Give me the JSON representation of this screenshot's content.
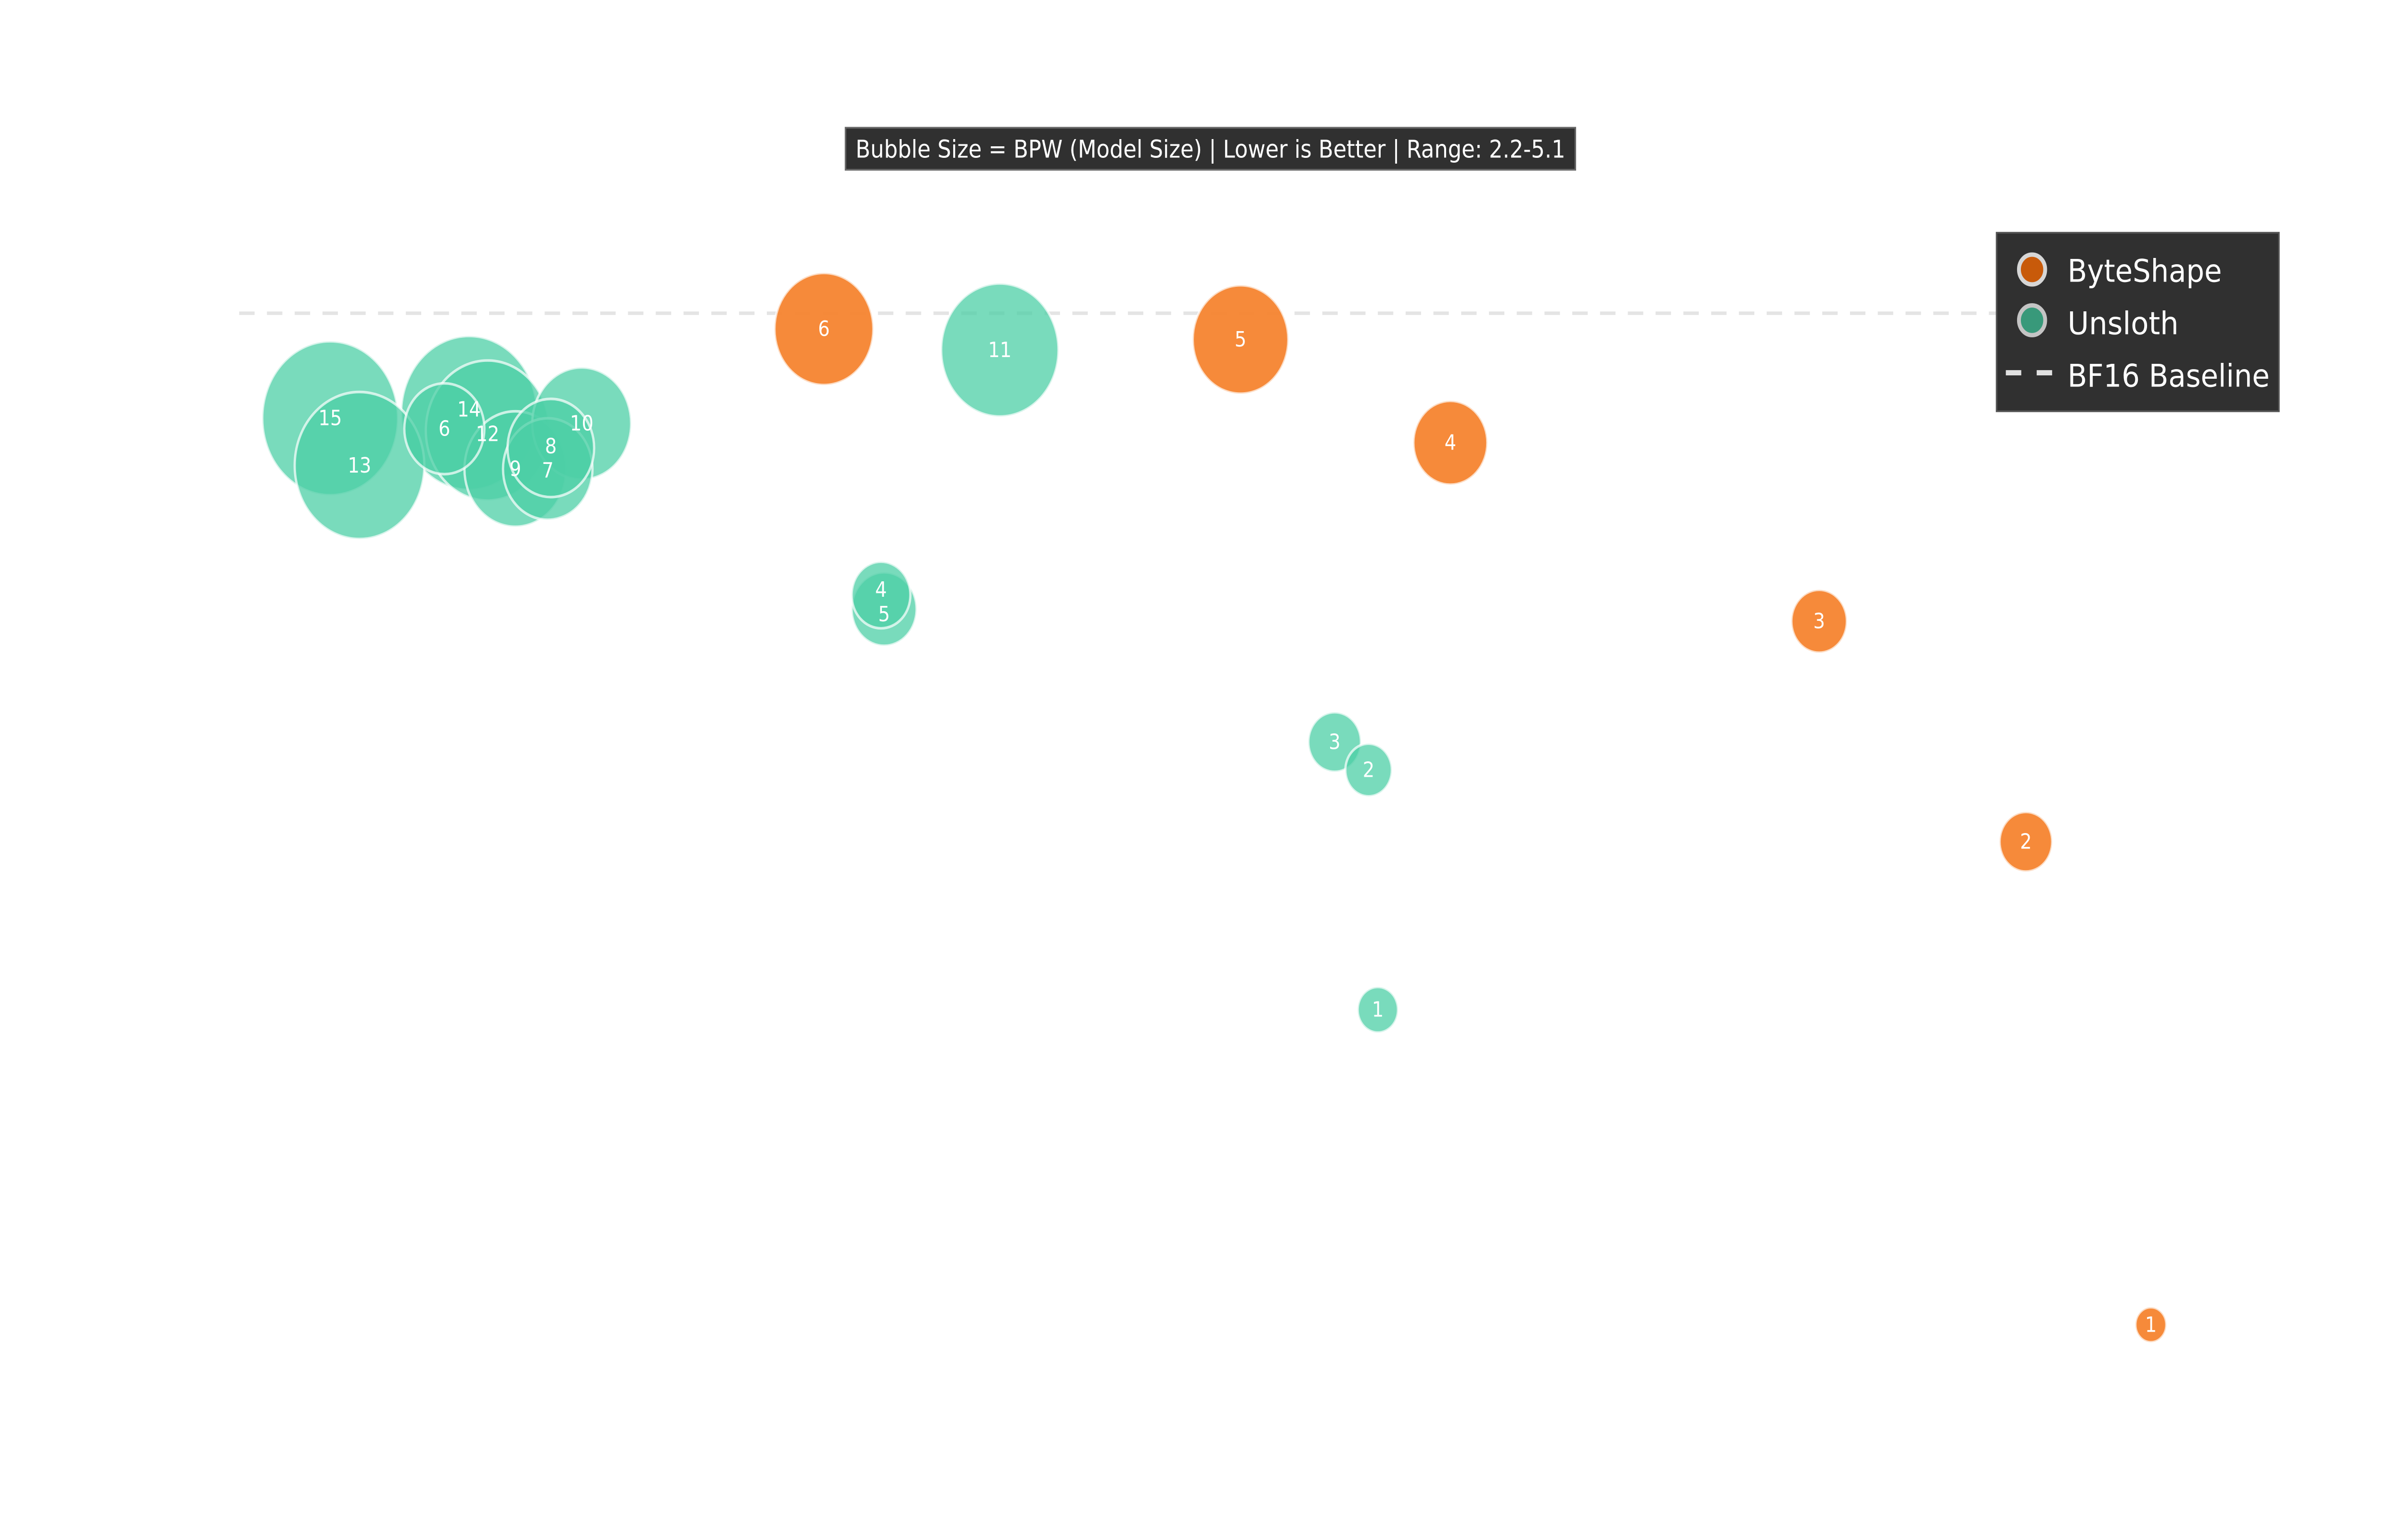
{
  "chart_data": {
    "type": "scatter",
    "subtitle": "Bubble Size = BPW (Model Size) | Lower is Better | Range: 2.2-5.1",
    "xlabel": "",
    "ylabel": "",
    "xlim": [
      0,
      15.6
    ],
    "ylim": [
      -1.5,
      7.0
    ],
    "y_inverted": true,
    "axes_visible": false,
    "grid": false,
    "bubble_size_range": [
      2.2,
      5.1
    ],
    "baseline": {
      "name": "BF16 Baseline",
      "y": 0,
      "style": "dashed",
      "color": "#e0e0e0"
    },
    "legend": {
      "placement": "top-right",
      "items": [
        {
          "label": "ByteShape",
          "marker": "circle",
          "color": "#c85a0a"
        },
        {
          "label": "Unsloth",
          "marker": "circle",
          "color": "#38997a"
        },
        {
          "label": "BF16 Baseline",
          "marker": "dash",
          "color": "#e0e0e0"
        }
      ]
    },
    "series": [
      {
        "name": "ByteShape",
        "color": "#f5842f",
        "points": [
          {
            "label": "1",
            "x": 13.94,
            "y": 5.78,
            "bpw": 2.2
          },
          {
            "label": "2",
            "x": 13.13,
            "y": 3.02,
            "bpw": 2.8
          },
          {
            "label": "3",
            "x": 11.79,
            "y": 1.76,
            "bpw": 2.88
          },
          {
            "label": "4",
            "x": 9.4,
            "y": 0.74,
            "bpw": 3.39
          },
          {
            "label": "5",
            "x": 8.04,
            "y": 0.15,
            "bpw": 3.99
          },
          {
            "label": "6",
            "x": 5.34,
            "y": 0.09,
            "bpw": 4.08
          }
        ]
      },
      {
        "name": "Unsloth",
        "color": "#4ccfa5",
        "points": [
          {
            "label": "1",
            "x": 8.93,
            "y": 3.98,
            "bpw": 2.46
          },
          {
            "label": "2",
            "x": 8.87,
            "y": 2.61,
            "bpw": 2.63
          },
          {
            "label": "3",
            "x": 8.65,
            "y": 2.45,
            "bpw": 2.8
          },
          {
            "label": "4",
            "x": 5.71,
            "y": 1.61,
            "bpw": 2.97
          },
          {
            "label": "5",
            "x": 5.73,
            "y": 1.69,
            "bpw": 3.14
          },
          {
            "label": "6",
            "x": 2.88,
            "y": 0.66,
            "bpw": 3.56
          },
          {
            "label": "7",
            "x": 3.55,
            "y": 0.89,
            "bpw": 3.82
          },
          {
            "label": "8",
            "x": 3.57,
            "y": 0.77,
            "bpw": 3.74
          },
          {
            "label": "9",
            "x": 3.34,
            "y": 0.89,
            "bpw": 4.16
          },
          {
            "label": "10",
            "x": 3.77,
            "y": 0.63,
            "bpw": 4.08
          },
          {
            "label": "11",
            "x": 6.48,
            "y": 0.21,
            "bpw": 4.59
          },
          {
            "label": "12",
            "x": 3.16,
            "y": 0.67,
            "bpw": 4.76
          },
          {
            "label": "13",
            "x": 2.33,
            "y": 0.87,
            "bpw": 4.93
          },
          {
            "label": "14",
            "x": 3.04,
            "y": 0.57,
            "bpw": 5.1
          },
          {
            "label": "15",
            "x": 2.14,
            "y": 0.6,
            "bpw": 5.1
          }
        ]
      }
    ]
  }
}
